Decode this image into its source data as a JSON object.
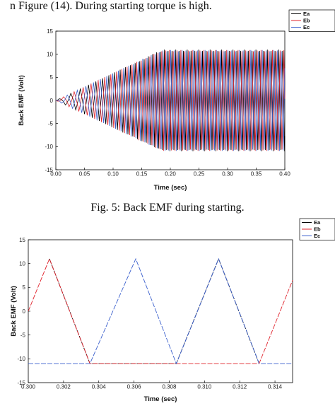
{
  "document": {
    "top_text": "n Figure (14). During starting torque is high.",
    "caption1": "Fig. 5: Back EMF during starting."
  },
  "chart_data": [
    {
      "type": "line",
      "title": "",
      "xlabel": "Time (sec)",
      "ylabel": "Back EMF (Volt)",
      "xlim": [
        0.0,
        0.4
      ],
      "ylim": [
        -15,
        15
      ],
      "x_ticks": [
        "0.00",
        "0.05",
        "0.10",
        "0.15",
        "0.20",
        "0.25",
        "0.30",
        "0.35",
        "0.40"
      ],
      "y_ticks": [
        "-15",
        "-10",
        "-5",
        "0",
        "5",
        "10",
        "15"
      ],
      "series": [
        {
          "name": "Ea",
          "color": "#000000"
        },
        {
          "name": "Eb",
          "color": "#e0202a"
        },
        {
          "name": "Ec",
          "color": "#3a5fcd"
        }
      ],
      "envelope": {
        "ramp_end_time": 0.185,
        "steady_amplitude": 11
      },
      "legend_position": "top-right"
    },
    {
      "type": "line",
      "title": "",
      "xlabel": "Time (sec)",
      "ylabel": "Back EMF (Volt)",
      "xlim": [
        0.3,
        0.315
      ],
      "ylim": [
        -15,
        15
      ],
      "x_ticks": [
        "0.300",
        "0.302",
        "0.304",
        "0.306",
        "0.308",
        "0.310",
        "0.312",
        "0.314"
      ],
      "y_ticks": [
        "-15",
        "-10",
        "-5",
        "0",
        "5",
        "10",
        "15"
      ],
      "series": [
        {
          "name": "Ea",
          "color": "#000000",
          "x": [
            0.3012,
            0.3035,
            0.3061,
            0.3084,
            0.3108,
            0.3131
          ],
          "y": [
            11,
            -11,
            -11,
            -11,
            11,
            -11
          ]
        },
        {
          "name": "Eb",
          "color": "#e0202a",
          "x": [
            0.3,
            0.3012,
            0.3035,
            0.3084,
            0.3108,
            0.3131,
            0.315
          ],
          "y": [
            0,
            11,
            -11,
            -11,
            -11,
            -11,
            6.5
          ]
        },
        {
          "name": "Ec",
          "color": "#3a5fcd",
          "x": [
            0.3,
            0.3035,
            0.3061,
            0.3084,
            0.3108,
            0.3131,
            0.315
          ],
          "y": [
            -11,
            -11,
            11,
            -11,
            11,
            -11,
            -11
          ]
        }
      ],
      "legend_position": "top-right"
    }
  ]
}
